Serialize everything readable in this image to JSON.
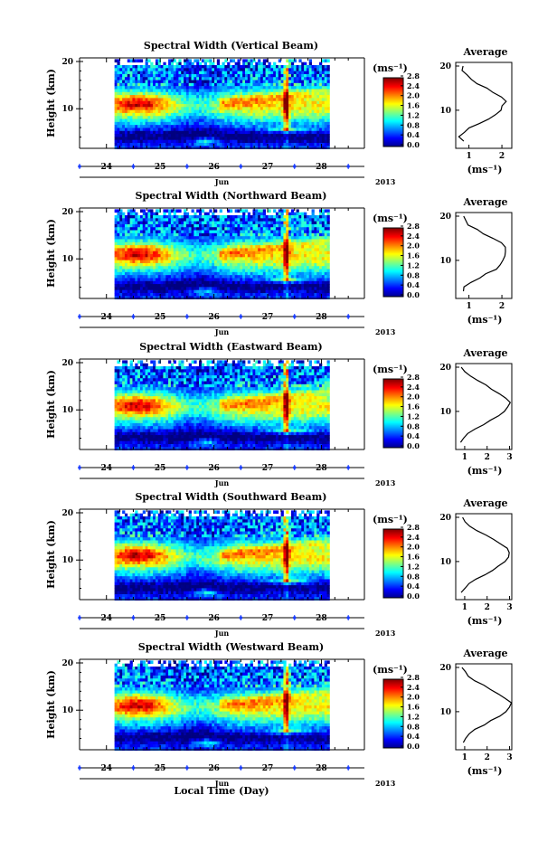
{
  "figure": {
    "bottom_xlabel": "Local Time (Day)",
    "month_label": "Jun",
    "year_label": "2013",
    "ylabel": "Height (km)",
    "cbar_unit": "(ms⁻¹)",
    "avg_title": "Average",
    "avg_xunit": "(ms⁻¹)"
  },
  "chart_data": [
    {
      "type": "heatmap",
      "title": "Spectral Width (Vertical Beam)",
      "ylabel": "Height (km)",
      "ylim": [
        2,
        20
      ],
      "yticks": [
        {
          "v": 10,
          "label": "10"
        },
        {
          "v": 20,
          "label": "20"
        }
      ],
      "xlim": [
        23.5,
        28.8
      ],
      "xticks": [
        {
          "v": 24,
          "label": "24"
        },
        {
          "v": 25,
          "label": "25"
        },
        {
          "v": 26,
          "label": "26"
        },
        {
          "v": 27,
          "label": "27"
        },
        {
          "v": 28,
          "label": "28"
        }
      ],
      "data_start": 24.15,
      "data_end": 28.15,
      "colorbar": {
        "min": 0.0,
        "max": 2.8,
        "ticks": [
          "0.0",
          "0.4",
          "0.8",
          "1.2",
          "1.6",
          "2.0",
          "2.4",
          "2.8"
        ]
      },
      "average": {
        "title": "Average",
        "xlim": [
          0.6,
          2.3
        ],
        "xticks": [
          {
            "v": 1,
            "label": "1"
          },
          {
            "v": 2,
            "label": "2"
          }
        ],
        "heights": [
          3,
          4,
          5,
          6,
          7,
          8,
          9,
          10,
          11,
          12,
          13,
          14,
          15,
          16,
          17,
          18,
          19,
          20
        ],
        "values": [
          0.9,
          0.75,
          0.85,
          1.05,
          1.3,
          1.55,
          1.8,
          1.95,
          2.05,
          2.1,
          1.95,
          1.75,
          1.5,
          1.3,
          1.1,
          0.95,
          0.85,
          0.8
        ]
      }
    },
    {
      "type": "heatmap",
      "title": "Spectral Width (Northward Beam)",
      "ylabel": "Height (km)",
      "ylim": [
        2,
        20
      ],
      "yticks": [
        {
          "v": 10,
          "label": "10"
        },
        {
          "v": 20,
          "label": "20"
        }
      ],
      "xlim": [
        23.5,
        28.8
      ],
      "xticks": [
        {
          "v": 24,
          "label": "24"
        },
        {
          "v": 25,
          "label": "25"
        },
        {
          "v": 26,
          "label": "26"
        },
        {
          "v": 27,
          "label": "27"
        },
        {
          "v": 28,
          "label": "28"
        }
      ],
      "data_start": 24.15,
      "data_end": 28.15,
      "colorbar": {
        "min": 0.0,
        "max": 2.8,
        "ticks": [
          "0.0",
          "0.4",
          "0.8",
          "1.2",
          "1.6",
          "2.0",
          "2.4",
          "2.8"
        ]
      },
      "average": {
        "title": "Average",
        "xlim": [
          0.6,
          2.3
        ],
        "xticks": [
          {
            "v": 1,
            "label": "1"
          },
          {
            "v": 2,
            "label": "2"
          }
        ],
        "heights": [
          3,
          4,
          5,
          6,
          7,
          8,
          9,
          10,
          11,
          12,
          13,
          14,
          15,
          16,
          17,
          18,
          19,
          20
        ],
        "values": [
          0.85,
          0.9,
          1.05,
          1.3,
          1.55,
          1.8,
          1.95,
          2.05,
          2.1,
          2.15,
          2.1,
          1.95,
          1.7,
          1.45,
          1.2,
          1.0,
          0.9,
          0.85
        ]
      }
    },
    {
      "type": "heatmap",
      "title": "Spectral Width (Eastward Beam)",
      "ylabel": "Height (km)",
      "ylim": [
        2,
        20
      ],
      "yticks": [
        {
          "v": 10,
          "label": "10"
        },
        {
          "v": 20,
          "label": "20"
        }
      ],
      "xlim": [
        23.5,
        28.8
      ],
      "xticks": [
        {
          "v": 24,
          "label": "24"
        },
        {
          "v": 25,
          "label": "25"
        },
        {
          "v": 26,
          "label": "26"
        },
        {
          "v": 27,
          "label": "27"
        },
        {
          "v": 28,
          "label": "28"
        }
      ],
      "data_start": 24.15,
      "data_end": 28.15,
      "colorbar": {
        "min": 0.0,
        "max": 2.8,
        "ticks": [
          "0.0",
          "0.4",
          "0.8",
          "1.2",
          "1.6",
          "2.0",
          "2.4",
          "2.8"
        ]
      },
      "average": {
        "title": "Average",
        "xlim": [
          0.6,
          3.1
        ],
        "xticks": [
          {
            "v": 1,
            "label": "1"
          },
          {
            "v": 2,
            "label": "2"
          },
          {
            "v": 3,
            "label": "3"
          }
        ],
        "heights": [
          3,
          4,
          5,
          6,
          7,
          8,
          9,
          10,
          11,
          12,
          13,
          14,
          15,
          16,
          17,
          18,
          19,
          20
        ],
        "values": [
          0.85,
          0.95,
          1.15,
          1.45,
          1.8,
          2.15,
          2.5,
          2.75,
          2.9,
          3.0,
          2.85,
          2.55,
          2.2,
          1.9,
          1.6,
          1.3,
          1.05,
          0.9
        ]
      }
    },
    {
      "type": "heatmap",
      "title": "Spectral Width (Southward Beam)",
      "ylabel": "Height (km)",
      "ylim": [
        2,
        20
      ],
      "yticks": [
        {
          "v": 10,
          "label": "10"
        },
        {
          "v": 20,
          "label": "20"
        }
      ],
      "xlim": [
        23.5,
        28.8
      ],
      "xticks": [
        {
          "v": 24,
          "label": "24"
        },
        {
          "v": 25,
          "label": "25"
        },
        {
          "v": 26,
          "label": "26"
        },
        {
          "v": 27,
          "label": "27"
        },
        {
          "v": 28,
          "label": "28"
        }
      ],
      "data_start": 24.15,
      "data_end": 28.15,
      "colorbar": {
        "min": 0.0,
        "max": 2.8,
        "ticks": [
          "0.0",
          "0.4",
          "0.8",
          "1.2",
          "1.6",
          "2.0",
          "2.4",
          "2.8"
        ]
      },
      "average": {
        "title": "Average",
        "xlim": [
          0.6,
          3.1
        ],
        "xticks": [
          {
            "v": 1,
            "label": "1"
          },
          {
            "v": 2,
            "label": "2"
          },
          {
            "v": 3,
            "label": "3"
          }
        ],
        "heights": [
          3,
          4,
          5,
          6,
          7,
          8,
          9,
          10,
          11,
          12,
          13,
          14,
          15,
          16,
          17,
          18,
          19,
          20
        ],
        "values": [
          0.9,
          1.0,
          1.2,
          1.5,
          1.85,
          2.2,
          2.5,
          2.75,
          2.95,
          3.0,
          2.9,
          2.6,
          2.25,
          1.9,
          1.55,
          1.25,
          1.0,
          0.85
        ]
      }
    },
    {
      "type": "heatmap",
      "title": "Spectral Width (Westward Beam)",
      "ylabel": "Height (km)",
      "ylim": [
        2,
        20
      ],
      "yticks": [
        {
          "v": 10,
          "label": "10"
        },
        {
          "v": 20,
          "label": "20"
        }
      ],
      "xlim": [
        23.5,
        28.8
      ],
      "xticks": [
        {
          "v": 24,
          "label": "24"
        },
        {
          "v": 25,
          "label": "25"
        },
        {
          "v": 26,
          "label": "26"
        },
        {
          "v": 27,
          "label": "27"
        },
        {
          "v": 28,
          "label": "28"
        }
      ],
      "data_start": 24.15,
      "data_end": 28.15,
      "colorbar": {
        "min": 0.0,
        "max": 2.8,
        "ticks": [
          "0.0",
          "0.4",
          "0.8",
          "1.2",
          "1.6",
          "2.0",
          "2.4",
          "2.8"
        ]
      },
      "average": {
        "title": "Average",
        "xlim": [
          0.6,
          3.1
        ],
        "xticks": [
          {
            "v": 1,
            "label": "1"
          },
          {
            "v": 2,
            "label": "2"
          },
          {
            "v": 3,
            "label": "3"
          }
        ],
        "heights": [
          3,
          4,
          5,
          6,
          7,
          8,
          9,
          10,
          11,
          12,
          13,
          14,
          15,
          16,
          17,
          18,
          19,
          20
        ],
        "values": [
          0.9,
          1.0,
          1.2,
          1.5,
          1.85,
          2.2,
          2.55,
          2.8,
          2.95,
          3.05,
          2.85,
          2.5,
          2.15,
          1.8,
          1.5,
          1.2,
          1.0,
          0.85
        ]
      }
    }
  ]
}
